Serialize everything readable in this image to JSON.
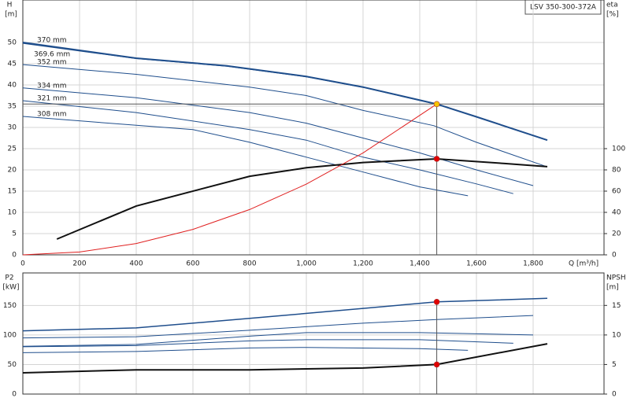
{
  "title": "LSV 350-300-372A",
  "chart_data": [
    {
      "type": "line",
      "ylabel": "H",
      "yunit": "[m]",
      "y2label": "eta",
      "y2unit": "[%]",
      "xlabel": "Q [m³/h]",
      "xlim": [
        0,
        2050
      ],
      "ylim": [
        0,
        60
      ],
      "y2lim": [
        0,
        240
      ],
      "xticks": [
        0,
        200,
        400,
        600,
        800,
        {
          "value": 1000,
          "label": "1,000"
        },
        {
          "value": 1200,
          "label": "1,200"
        },
        {
          "value": 1400,
          "label": "1,400"
        },
        {
          "value": 1600,
          "label": "1,600"
        },
        {
          "value": 1800,
          "label": "1,800"
        }
      ],
      "yticks": [
        0,
        5,
        10,
        15,
        20,
        25,
        30,
        35,
        40,
        45,
        50
      ],
      "y2ticks": [
        0,
        20,
        40,
        60,
        80,
        100
      ],
      "grid": true,
      "series": [
        {
          "name": "370 mm",
          "color": "#1f4e8c",
          "width": 2,
          "x": [
            0,
            400,
            720,
            1000,
            1200,
            1460,
            1600,
            1850
          ],
          "values": [
            50,
            46.3,
            44.5,
            42,
            39.5,
            35.5,
            32.5,
            27
          ]
        },
        {
          "name": "369.6 mm",
          "color": "#1f4e8c",
          "width": 1,
          "x": [
            0,
            400,
            720,
            1000,
            1200,
            1460
          ],
          "values": [
            49.8,
            46.2,
            44.4,
            41.9,
            39.4,
            35.4
          ]
        },
        {
          "name": "352 mm",
          "color": "#1f4e8c",
          "width": 1,
          "x": [
            0,
            400,
            800,
            1000,
            1200,
            1450,
            1600,
            1850
          ],
          "values": [
            44.8,
            42.5,
            39.5,
            37.5,
            34,
            30.4,
            26.5,
            20.7
          ]
        },
        {
          "name": "334 mm",
          "color": "#1f4e8c",
          "width": 1,
          "x": [
            0,
            400,
            800,
            1000,
            1200,
            1400,
            1600,
            1800
          ],
          "values": [
            39.3,
            37,
            33.5,
            31,
            27.5,
            24,
            20,
            16.3
          ]
        },
        {
          "name": "321 mm",
          "color": "#1f4e8c",
          "width": 1,
          "x": [
            0,
            400,
            800,
            1000,
            1200,
            1400,
            1600,
            1730
          ],
          "values": [
            36.3,
            33.5,
            29.5,
            27,
            23,
            20,
            16.7,
            14.4
          ]
        },
        {
          "name": "308 mm",
          "color": "#1f4e8c",
          "width": 1,
          "x": [
            0,
            400,
            600,
            800,
            1000,
            1200,
            1400,
            1570
          ],
          "values": [
            32.6,
            30.5,
            29.5,
            26.5,
            23,
            19.5,
            16,
            13.9
          ]
        },
        {
          "color": "#111111",
          "width": 2,
          "axis": "y2",
          "x": [
            120,
            400,
            800,
            1000,
            1200,
            1460,
            1700,
            1850
          ],
          "values": [
            14.8,
            46,
            74,
            82,
            87,
            90.4,
            86,
            83
          ]
        },
        {
          "color": "#e02020",
          "width": 1,
          "x": [
            0,
            200,
            400,
            600,
            800,
            1000,
            1200,
            1460
          ],
          "values": [
            0,
            0.67,
            2.66,
            6,
            10.66,
            16.65,
            24,
            35.5
          ]
        }
      ],
      "markers": [
        {
          "x": 1460,
          "y": 35.5,
          "color": "#f5c400"
        },
        {
          "x": 1460,
          "y": 90.4,
          "axis": "y2",
          "color": "#e00000"
        }
      ]
    },
    {
      "type": "line",
      "ylabel": "P2",
      "yunit": "[kW]",
      "y2label": "NPSH",
      "y2unit": "[m]",
      "xlim": [
        0,
        2050
      ],
      "ylim": [
        0,
        205
      ],
      "y2lim": [
        0,
        20.5
      ],
      "xticks": [
        0,
        200,
        400,
        600,
        800,
        1000,
        1200,
        1400,
        1600,
        1800
      ],
      "yticks": [
        0,
        50,
        100,
        150
      ],
      "y2ticks": [
        0,
        5,
        10,
        15
      ],
      "grid": true,
      "series": [
        {
          "color": "#1f4e8c",
          "width": 1.5,
          "x": [
            0,
            400,
            800,
            1200,
            1460,
            1850
          ],
          "values": [
            107,
            112,
            128,
            145,
            156,
            162
          ]
        },
        {
          "color": "#1f4e8c",
          "width": 1,
          "x": [
            0,
            400,
            800,
            1200,
            1460,
            1800
          ],
          "values": [
            95,
            97,
            108,
            120,
            126,
            133
          ]
        },
        {
          "color": "#1f4e8c",
          "width": 1,
          "x": [
            0,
            400,
            800,
            1000,
            1400,
            1800
          ],
          "values": [
            81,
            84,
            98,
            104,
            104,
            100
          ]
        },
        {
          "color": "#1f4e8c",
          "width": 1,
          "x": [
            0,
            400,
            800,
            1000,
            1400,
            1730
          ],
          "values": [
            80,
            82,
            90,
            92,
            92,
            86
          ]
        },
        {
          "color": "#1f4e8c",
          "width": 1,
          "x": [
            0,
            400,
            800,
            1000,
            1400,
            1570
          ],
          "values": [
            70,
            72,
            78,
            79,
            77,
            74
          ]
        },
        {
          "color": "#111111",
          "width": 2,
          "axis": "y2",
          "x": [
            0,
            400,
            800,
            1200,
            1460,
            1850
          ],
          "values": [
            3.6,
            4.1,
            4.1,
            4.4,
            5,
            8.5
          ]
        }
      ],
      "markers": [
        {
          "x": 1460,
          "y": 156,
          "color": "#e00000"
        },
        {
          "x": 1460,
          "y": 5,
          "axis": "y2",
          "color": "#e00000"
        }
      ]
    }
  ]
}
